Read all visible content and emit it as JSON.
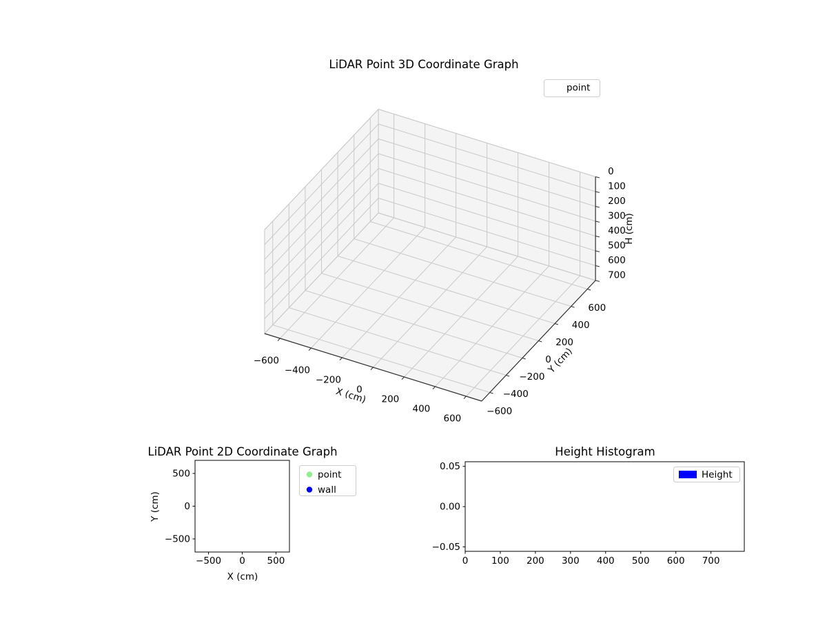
{
  "colors": {
    "background": "#ffffff",
    "text": "#000000",
    "pane_3d": "#f4f4f4",
    "grid_3d": "#c9c9c9",
    "axis_line_3d": "#2e2e2e",
    "axes_frame": "#000000",
    "legend_border": "#cccccc",
    "point": "#90ee90",
    "wall": "#0000ff",
    "height": "#0000ff"
  },
  "chart_data": [
    {
      "id": "lidar-3d",
      "type": "scatter3d",
      "title": "LiDAR Point 3D Coordinate Graph",
      "xlabel": "X (cm)",
      "ylabel": "Y (cm)",
      "zlabel": "H (cm)",
      "xlim": [
        -700,
        700
      ],
      "ylim": [
        -700,
        700
      ],
      "zlim": [
        0,
        700
      ],
      "zaxis_inverted": true,
      "grid": true,
      "xticks": [
        -600,
        -400,
        -200,
        0,
        200,
        400,
        600
      ],
      "xtick_labels": [
        "−600",
        "−400",
        "−200",
        "0",
        "200",
        "400",
        "600"
      ],
      "yticks": [
        -600,
        -400,
        -200,
        0,
        200,
        400,
        600
      ],
      "ytick_labels": [
        "−600",
        "−400",
        "−200",
        "0",
        "200",
        "400",
        "600"
      ],
      "zticks": [
        0,
        100,
        200,
        300,
        400,
        500,
        600,
        700
      ],
      "ztick_labels": [
        "0",
        "100",
        "200",
        "300",
        "400",
        "500",
        "600",
        "700"
      ],
      "legend": {
        "location": "upper-right",
        "entries": [
          {
            "label": "point",
            "marker": "none"
          }
        ]
      },
      "series": [
        {
          "name": "point",
          "points": []
        }
      ]
    },
    {
      "id": "lidar-2d",
      "type": "scatter",
      "title": "LiDAR Point 2D Coordinate Graph",
      "xlabel": "X (cm)",
      "ylabel": "Y (cm)",
      "xlim": [
        -700,
        700
      ],
      "ylim": [
        -700,
        700
      ],
      "grid": false,
      "xticks": [
        -500,
        0,
        500
      ],
      "xtick_labels": [
        "−500",
        "0",
        "500"
      ],
      "yticks": [
        500,
        0,
        -500
      ],
      "ytick_labels": [
        "500",
        "0",
        "−500"
      ],
      "legend": {
        "location": "outside-right",
        "entries": [
          {
            "label": "point",
            "marker": "circle",
            "color": "#90ee90"
          },
          {
            "label": "wall",
            "marker": "circle",
            "color": "#0000ff"
          }
        ]
      },
      "series": [
        {
          "name": "point",
          "points": []
        },
        {
          "name": "wall",
          "points": []
        }
      ]
    },
    {
      "id": "height-histogram",
      "type": "bar",
      "title": "Height Histogram",
      "xlabel": "",
      "ylabel": "",
      "xlim": [
        0,
        795
      ],
      "ylim": [
        -0.0555,
        0.0557
      ],
      "grid": false,
      "xticks": [
        0,
        100,
        200,
        300,
        400,
        500,
        600,
        700
      ],
      "xtick_labels": [
        "0",
        "100",
        "200",
        "300",
        "400",
        "500",
        "600",
        "700"
      ],
      "yticks": [
        0.05,
        0,
        -0.05
      ],
      "ytick_labels": [
        "0.05",
        "0.00",
        "−0.05"
      ],
      "legend": {
        "location": "upper-right",
        "entries": [
          {
            "label": "Height",
            "marker": "patch",
            "color": "#0000ff"
          }
        ]
      },
      "values": []
    }
  ]
}
